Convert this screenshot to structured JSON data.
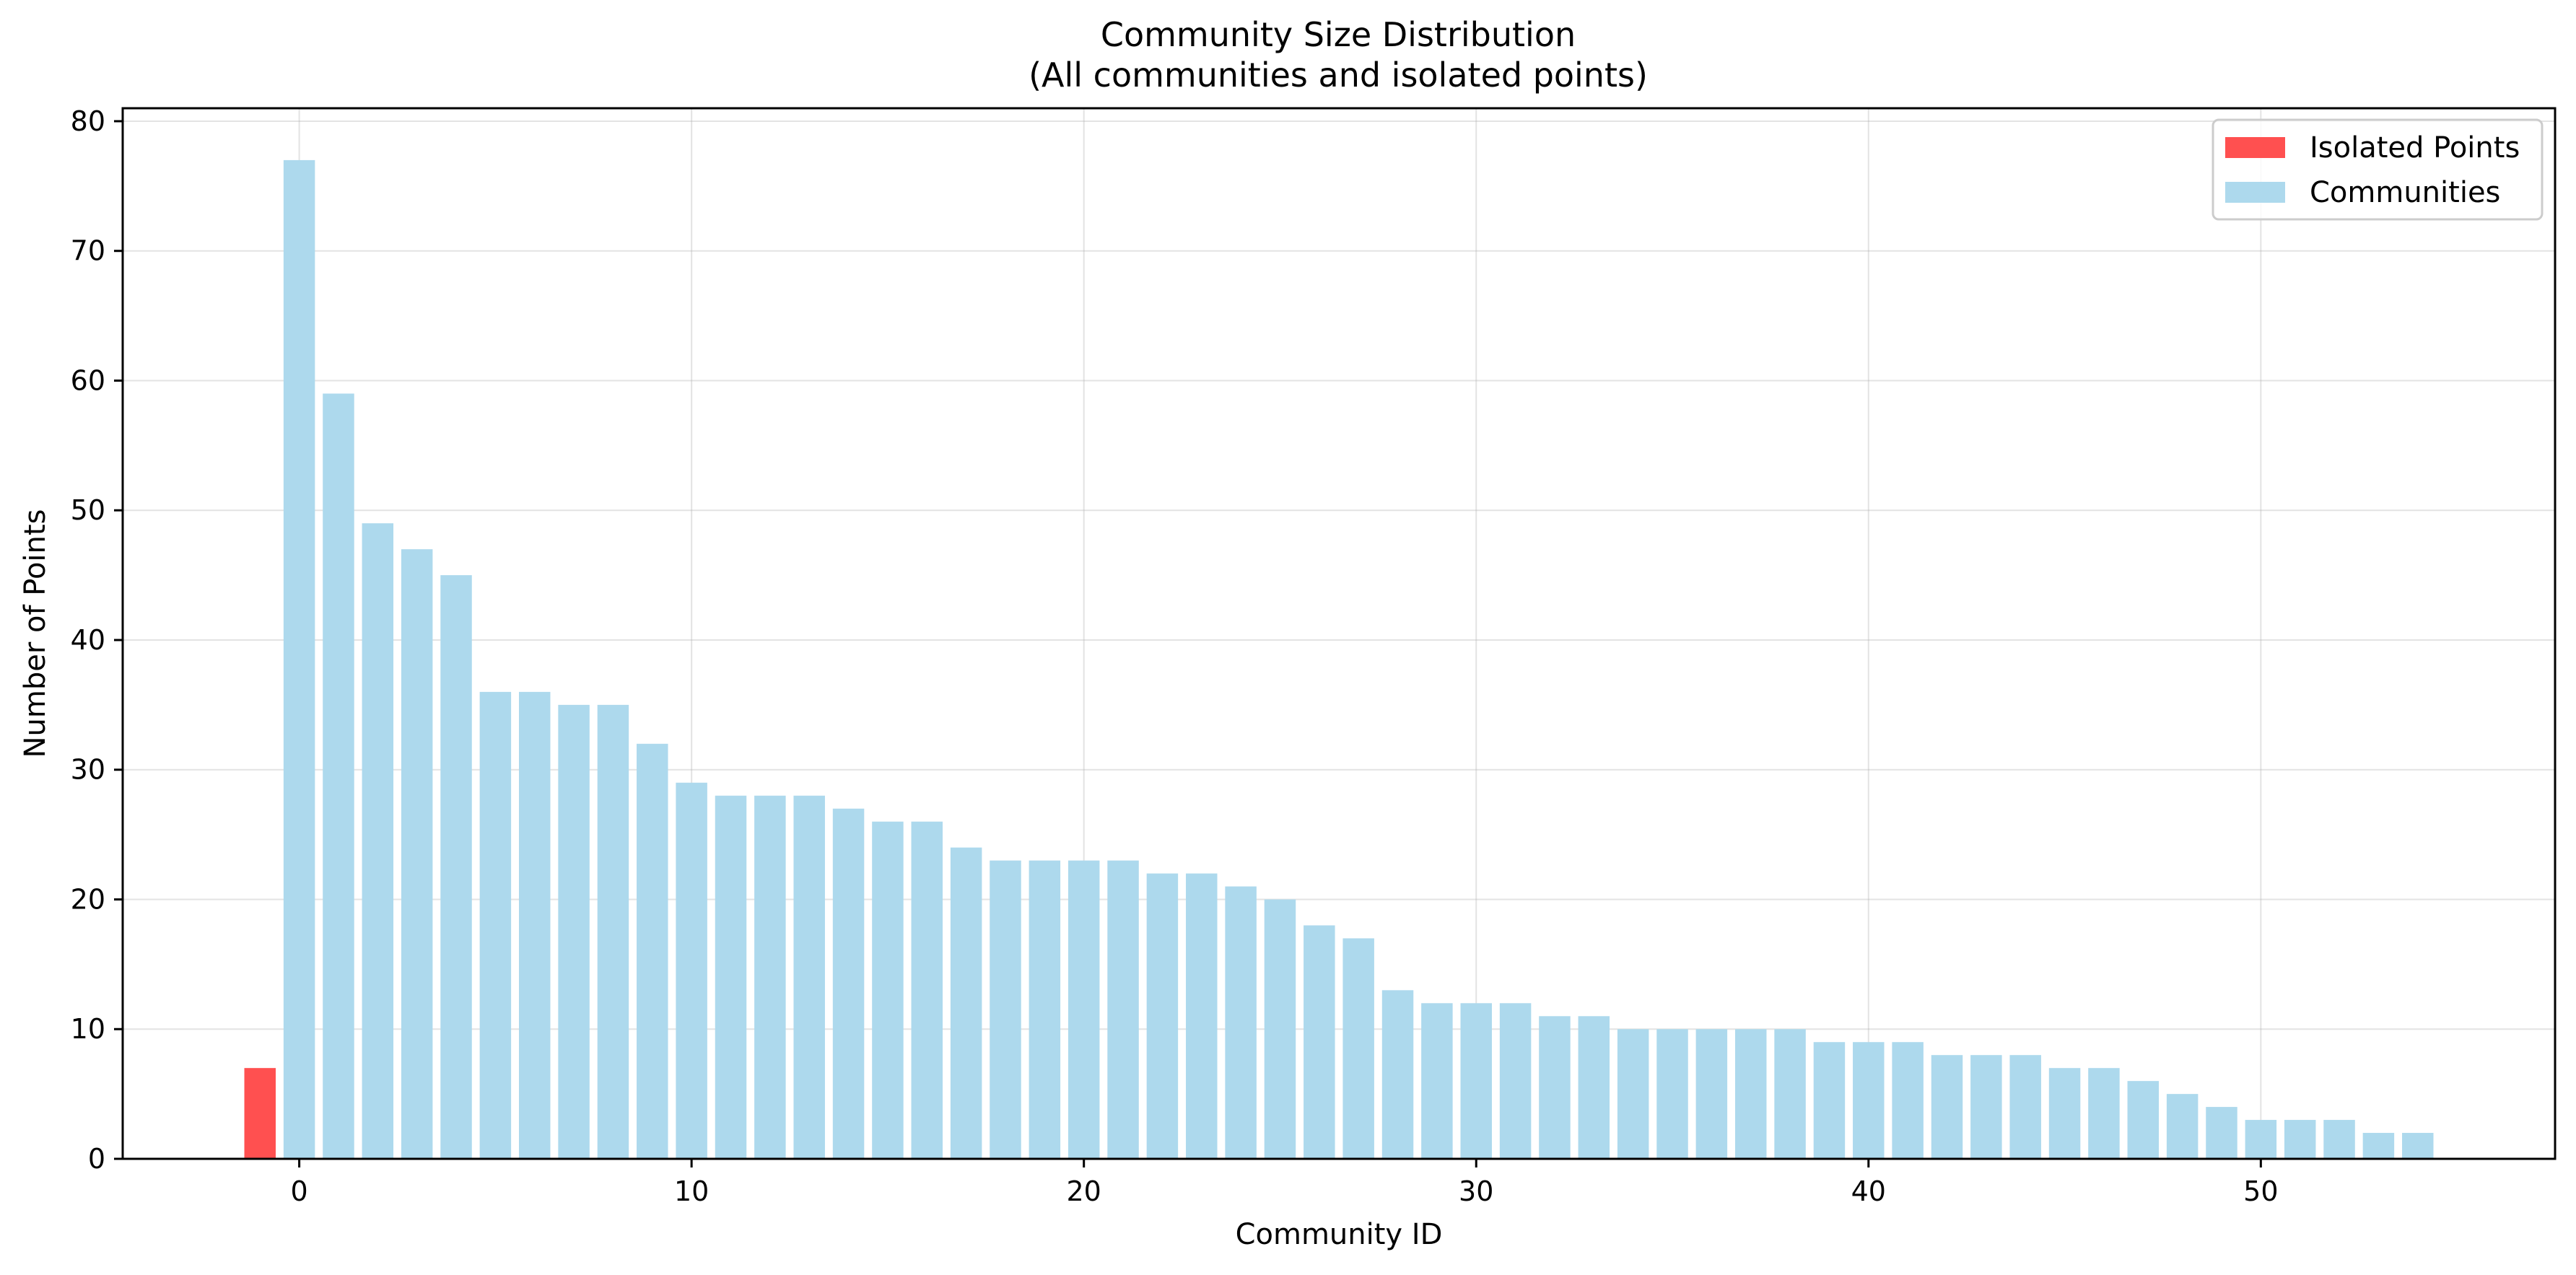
{
  "chart_data": {
    "type": "bar",
    "title": "Community Size Distribution",
    "subtitle": "(All communities and isolated points)",
    "xlabel": "Community ID",
    "ylabel": "Number of Points",
    "xlim": [
      -4.5,
      57.5
    ],
    "ylim": [
      0,
      81
    ],
    "xticks": [
      0,
      10,
      20,
      30,
      40,
      50
    ],
    "yticks": [
      0,
      10,
      20,
      30,
      40,
      50,
      60,
      70,
      80
    ],
    "grid": true,
    "legend_position": "top-right",
    "series": [
      {
        "name": "Isolated Points",
        "color": "#ff5050",
        "points": [
          {
            "x": -1,
            "y": 7
          }
        ]
      },
      {
        "name": "Communities",
        "color": "#add9ed",
        "points": [
          {
            "x": 0,
            "y": 77
          },
          {
            "x": 1,
            "y": 59
          },
          {
            "x": 2,
            "y": 49
          },
          {
            "x": 3,
            "y": 47
          },
          {
            "x": 4,
            "y": 45
          },
          {
            "x": 5,
            "y": 36
          },
          {
            "x": 6,
            "y": 36
          },
          {
            "x": 7,
            "y": 35
          },
          {
            "x": 8,
            "y": 35
          },
          {
            "x": 9,
            "y": 32
          },
          {
            "x": 10,
            "y": 29
          },
          {
            "x": 11,
            "y": 28
          },
          {
            "x": 12,
            "y": 28
          },
          {
            "x": 13,
            "y": 28
          },
          {
            "x": 14,
            "y": 27
          },
          {
            "x": 15,
            "y": 26
          },
          {
            "x": 16,
            "y": 26
          },
          {
            "x": 17,
            "y": 24
          },
          {
            "x": 18,
            "y": 23
          },
          {
            "x": 19,
            "y": 23
          },
          {
            "x": 20,
            "y": 23
          },
          {
            "x": 21,
            "y": 23
          },
          {
            "x": 22,
            "y": 22
          },
          {
            "x": 23,
            "y": 22
          },
          {
            "x": 24,
            "y": 21
          },
          {
            "x": 25,
            "y": 20
          },
          {
            "x": 26,
            "y": 18
          },
          {
            "x": 27,
            "y": 17
          },
          {
            "x": 28,
            "y": 13
          },
          {
            "x": 29,
            "y": 12
          },
          {
            "x": 30,
            "y": 12
          },
          {
            "x": 31,
            "y": 12
          },
          {
            "x": 32,
            "y": 11
          },
          {
            "x": 33,
            "y": 11
          },
          {
            "x": 34,
            "y": 10
          },
          {
            "x": 35,
            "y": 10
          },
          {
            "x": 36,
            "y": 10
          },
          {
            "x": 37,
            "y": 10
          },
          {
            "x": 38,
            "y": 10
          },
          {
            "x": 39,
            "y": 9
          },
          {
            "x": 40,
            "y": 9
          },
          {
            "x": 41,
            "y": 9
          },
          {
            "x": 42,
            "y": 8
          },
          {
            "x": 43,
            "y": 8
          },
          {
            "x": 44,
            "y": 8
          },
          {
            "x": 45,
            "y": 7
          },
          {
            "x": 46,
            "y": 7
          },
          {
            "x": 47,
            "y": 6
          },
          {
            "x": 48,
            "y": 5
          },
          {
            "x": 49,
            "y": 4
          },
          {
            "x": 50,
            "y": 3
          },
          {
            "x": 51,
            "y": 3
          },
          {
            "x": 52,
            "y": 3
          },
          {
            "x": 53,
            "y": 2
          },
          {
            "x": 54,
            "y": 2
          }
        ]
      }
    ]
  }
}
